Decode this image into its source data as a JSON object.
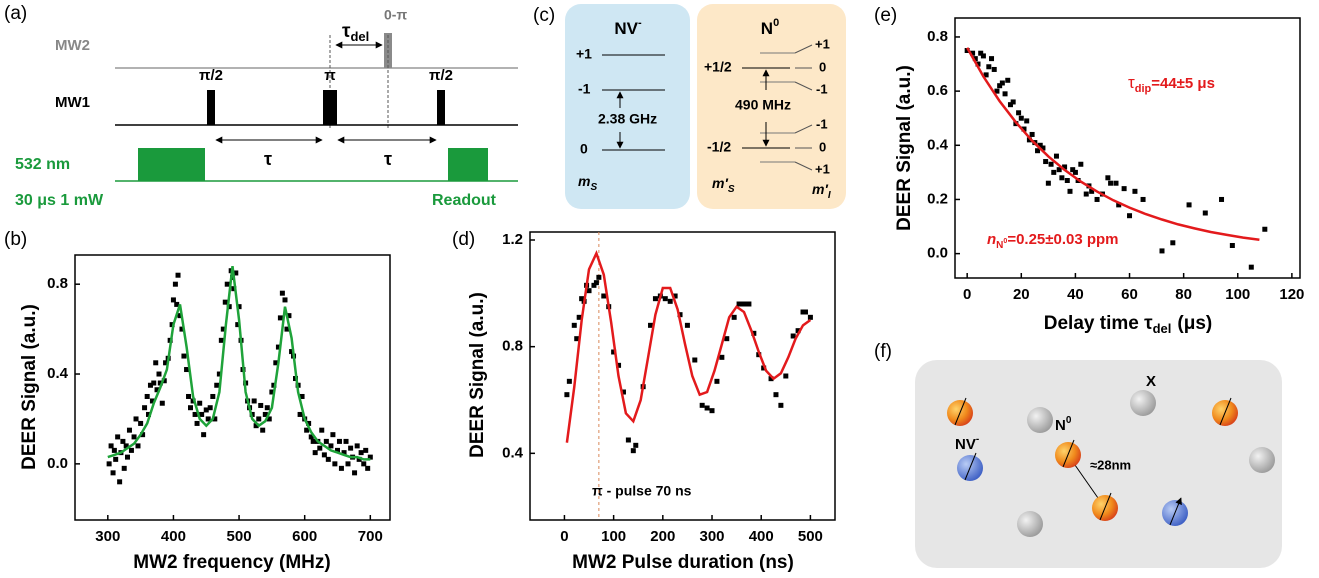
{
  "panel_labels": [
    "(a)",
    "(b)",
    "(c)",
    "(d)",
    "(e)",
    "(f)"
  ],
  "pulse_sequence": {
    "channels": [
      "MW2",
      "MW1",
      "532 nm"
    ],
    "pulses": [
      "π/2",
      "π",
      "π/2"
    ],
    "delays": [
      "τ",
      "τ"
    ],
    "tau_del": {
      "symbol": "τ",
      "sub": "del"
    },
    "mw2_pulse": "0-π",
    "laser_init": "30 μs 1 mW",
    "laser_readout": "Readout"
  },
  "energy_levels": {
    "nv": {
      "title": "NV",
      "title_sup": "-",
      "levels": [
        "+1",
        "-1",
        "0"
      ],
      "splitting": "2.38 GHz",
      "quantum_number": {
        "symbol": "m",
        "sub": "S"
      }
    },
    "n0": {
      "title": "N",
      "title_sup": "0",
      "levels": [
        "+1/2",
        "-1/2"
      ],
      "splitting": "490 MHz",
      "sublevels_upper": [
        "+1",
        "0",
        "-1"
      ],
      "sublevels_lower": [
        "-1",
        "0",
        "+1"
      ],
      "electron_number": {
        "symbol": "m′",
        "sub": "S"
      },
      "nuclear_number": {
        "symbol": "m′",
        "sub": "I"
      }
    }
  },
  "spin_schematic": {
    "impurity": "X",
    "n0": {
      "text": "N",
      "sup": "0"
    },
    "nv": {
      "text": "NV",
      "sup": "-"
    },
    "distance": "≈28nm"
  },
  "chart_data": [
    {
      "type": "scatter",
      "xlabel": "MW2 frequency (MHz)",
      "ylabel": "DEER Signal (a.u.)",
      "xlim": [
        250,
        730
      ],
      "ylim": [
        -0.25,
        0.93
      ],
      "xticks": [
        300,
        400,
        500,
        600,
        700
      ],
      "yticks": [
        {
          "value": 0,
          "label": "0.0"
        },
        0.4,
        0.8
      ],
      "series": [
        {
          "mode": "markers",
          "color": "#000000",
          "x": [
            302,
            305,
            308,
            310,
            312,
            315,
            318,
            320,
            323,
            325,
            328,
            330,
            333,
            336,
            340,
            343,
            346,
            350,
            353,
            356,
            360,
            362,
            365,
            368,
            370,
            373,
            375,
            378,
            380,
            383,
            386,
            388,
            392,
            395,
            398,
            400,
            403,
            405,
            407,
            410,
            413,
            416,
            420,
            423,
            426,
            430,
            433,
            436,
            440,
            443,
            446,
            450,
            453,
            456,
            460,
            463,
            466,
            470,
            473,
            476,
            479,
            482,
            485,
            488,
            490,
            492,
            495,
            498,
            500,
            503,
            506,
            510,
            513,
            516,
            520,
            523,
            526,
            530,
            533,
            536,
            540,
            543,
            546,
            550,
            553,
            556,
            560,
            563,
            566,
            570,
            573,
            576,
            580,
            583,
            586,
            590,
            593,
            596,
            600,
            603,
            606,
            610,
            613,
            616,
            620,
            623,
            626,
            630,
            633,
            636,
            640,
            643,
            646,
            650,
            653,
            656,
            660,
            663,
            666,
            670,
            673,
            676,
            680,
            683,
            686,
            690,
            693,
            696,
            700
          ],
          "values": [
            0,
            0.08,
            -0.04,
            0.06,
            0.02,
            0.12,
            -0.08,
            0.05,
            0.1,
            -0.02,
            0.08,
            0.03,
            0.15,
            0.06,
            0.12,
            0.2,
            0.08,
            0.18,
            0.13,
            0.25,
            0.3,
            0.22,
            0.35,
            0.28,
            0.36,
            0.45,
            0.33,
            0.4,
            0.36,
            0.27,
            0.37,
            0.45,
            0.47,
            0.55,
            0.62,
            0.73,
            0.8,
            0.71,
            0.84,
            0.66,
            0.6,
            0.48,
            0.42,
            0.3,
            0.25,
            0.28,
            0.22,
            0.18,
            0.27,
            0.22,
            0.13,
            0.24,
            0.2,
            0.25,
            0.3,
            0.2,
            0.35,
            0.4,
            0.55,
            0.6,
            0.72,
            0.8,
            0.7,
            0.86,
            0.83,
            0.78,
            0.85,
            0.62,
            0.7,
            0.55,
            0.42,
            0.36,
            0.28,
            0.25,
            0.22,
            0.28,
            0.17,
            0.2,
            0.26,
            0.15,
            0.22,
            0.25,
            0.2,
            0.32,
            0.35,
            0.45,
            0.52,
            0.65,
            0.76,
            0.73,
            0.6,
            0.66,
            0.5,
            0.48,
            0.38,
            0.35,
            0.22,
            0.3,
            0.2,
            0.15,
            0.18,
            0.12,
            0.1,
            0.05,
            0.1,
            0.07,
            0.15,
            0.04,
            0.1,
            0.02,
            0.08,
            0.13,
            0,
            0.06,
            0.1,
            -0.02,
            0.05,
            0.1,
            0,
            0.07,
            0.03,
            -0.04,
            0.08,
            0.02,
            0.05,
            0,
            0.06,
            -0.02,
            0.03
          ]
        },
        {
          "mode": "lines",
          "color": "#1fa33a",
          "x": [
            300,
            310,
            320,
            330,
            340,
            350,
            360,
            370,
            380,
            390,
            400,
            410,
            420,
            430,
            440,
            450,
            460,
            470,
            480,
            490,
            500,
            510,
            520,
            530,
            540,
            550,
            560,
            570,
            580,
            590,
            600,
            610,
            620,
            630,
            640,
            650,
            660,
            670,
            680,
            690,
            700
          ],
          "values": [
            0.03,
            0.04,
            0.05,
            0.07,
            0.09,
            0.13,
            0.18,
            0.27,
            0.34,
            0.42,
            0.62,
            0.71,
            0.52,
            0.3,
            0.2,
            0.17,
            0.2,
            0.32,
            0.62,
            0.88,
            0.64,
            0.32,
            0.2,
            0.17,
            0.19,
            0.25,
            0.45,
            0.7,
            0.56,
            0.32,
            0.2,
            0.14,
            0.1,
            0.08,
            0.06,
            0.05,
            0.04,
            0.03,
            0.03,
            0.02,
            0.02
          ]
        }
      ]
    },
    {
      "type": "scatter",
      "xlabel": "MW2 Pulse duration (ns)",
      "ylabel": "DEER Signal (a.u.)",
      "xlim": [
        -70,
        550
      ],
      "ylim": [
        0.15,
        1.23
      ],
      "xticks": [
        0,
        100,
        200,
        300,
        400,
        500
      ],
      "yticks": [
        0.4,
        0.8,
        1.2
      ],
      "annotation": {
        "text": "π - pulse 70 ns",
        "x": 70
      },
      "series": [
        {
          "mode": "markers",
          "color": "#000000",
          "x": [
            5,
            10,
            20,
            25,
            30,
            35,
            40,
            45,
            50,
            60,
            65,
            70,
            80,
            90,
            100,
            110,
            120,
            130,
            140,
            145,
            160,
            175,
            185,
            195,
            205,
            215,
            225,
            235,
            250,
            265,
            280,
            290,
            300,
            310,
            320,
            330,
            345,
            355,
            365,
            375,
            385,
            395,
            405,
            420,
            430,
            440,
            450,
            465,
            475,
            485,
            490,
            500
          ],
          "values": [
            0.62,
            0.67,
            0.88,
            0.83,
            0.91,
            0.98,
            0.97,
            1.03,
            1.01,
            1.03,
            1.04,
            1.06,
            0.99,
            0.95,
            0.78,
            0.73,
            0.63,
            0.45,
            0.41,
            0.43,
            0.65,
            0.88,
            0.98,
            0.99,
            0.98,
            0.97,
            0.99,
            0.92,
            0.88,
            0.75,
            0.58,
            0.57,
            0.56,
            0.67,
            0.76,
            0.83,
            0.91,
            0.96,
            0.96,
            0.96,
            0.85,
            0.77,
            0.72,
            0.68,
            0.62,
            0.58,
            0.69,
            0.84,
            0.86,
            0.93,
            0.93,
            0.91
          ]
        },
        {
          "mode": "lines",
          "color": "#e31a1c",
          "x": [
            5,
            20,
            35,
            50,
            65,
            80,
            95,
            110,
            125,
            140,
            155,
            170,
            185,
            200,
            215,
            230,
            245,
            260,
            275,
            290,
            305,
            320,
            335,
            350,
            365,
            380,
            395,
            410,
            425,
            440,
            455,
            470,
            485,
            500
          ],
          "values": [
            0.44,
            0.65,
            0.9,
            1.09,
            1.15,
            1.07,
            0.89,
            0.69,
            0.55,
            0.52,
            0.6,
            0.76,
            0.92,
            1.02,
            1.02,
            0.94,
            0.81,
            0.69,
            0.62,
            0.63,
            0.71,
            0.81,
            0.91,
            0.95,
            0.93,
            0.86,
            0.78,
            0.71,
            0.68,
            0.7,
            0.76,
            0.83,
            0.88,
            0.9
          ]
        }
      ]
    },
    {
      "type": "scatter",
      "xlabel": {
        "text": "Delay time τ",
        "sub": "del",
        "unit": "(μs)"
      },
      "ylabel": "DEER Signal (a.u.)",
      "xlim": [
        -4.5,
        123
      ],
      "ylim": [
        -0.09,
        0.87
      ],
      "xticks": [
        0,
        20,
        40,
        60,
        80,
        100,
        120
      ],
      "yticks": [
        {
          "value": 0,
          "label": "0.0"
        },
        0.2,
        0.4,
        0.6,
        0.8
      ],
      "annotations": [
        {
          "symbol": "τ",
          "sub": "dip",
          "text": "=44±5 μs"
        },
        {
          "symbol": "n",
          "sub": "N",
          "sub_sup": "0",
          "text": "=0.25±0.03 ppm"
        }
      ],
      "series": [
        {
          "mode": "markers",
          "color": "#000000",
          "x": [
            0,
            2,
            3,
            4,
            5,
            6,
            7,
            8,
            9,
            10,
            11,
            12,
            13,
            14,
            15,
            16,
            17,
            18,
            19,
            20,
            21,
            22,
            23,
            24,
            25,
            26,
            27,
            28,
            29,
            30,
            31,
            32,
            33,
            34,
            35,
            36,
            37,
            38,
            39,
            40,
            41,
            42,
            44,
            45,
            46,
            48,
            50,
            52,
            53,
            55,
            56,
            58,
            60,
            62,
            65,
            72,
            76,
            82,
            88,
            94,
            98,
            105,
            110
          ],
          "values": [
            0.75,
            0.74,
            0.72,
            0.7,
            0.74,
            0.73,
            0.66,
            0.69,
            0.72,
            0.68,
            0.6,
            0.62,
            0.63,
            0.59,
            0.64,
            0.55,
            0.56,
            0.48,
            0.52,
            0.5,
            0.46,
            0.49,
            0.42,
            0.44,
            0.41,
            0.38,
            0.4,
            0.39,
            0.34,
            0.26,
            0.33,
            0.3,
            0.36,
            0.31,
            0.28,
            0.32,
            0.27,
            0.23,
            0.31,
            0.3,
            0.27,
            0.33,
            0.22,
            0.25,
            0.23,
            0.2,
            0.22,
            0.28,
            0.26,
            0.26,
            0.18,
            0.24,
            0.14,
            0.23,
            0.2,
            0.01,
            0.04,
            0.18,
            0.15,
            0.2,
            0.03,
            -0.05,
            0.09
          ]
        },
        {
          "mode": "lines",
          "color": "#e31a1c",
          "x": [
            0,
            6,
            12,
            18,
            24,
            30,
            36,
            42,
            48,
            54,
            60,
            66,
            72,
            78,
            84,
            90,
            96,
            102,
            108
          ],
          "values": [
            0.76,
            0.654,
            0.563,
            0.485,
            0.417,
            0.359,
            0.309,
            0.266,
            0.229,
            0.197,
            0.17,
            0.146,
            0.126,
            0.108,
            0.093,
            0.08,
            0.069,
            0.059,
            0.051
          ]
        }
      ]
    }
  ]
}
